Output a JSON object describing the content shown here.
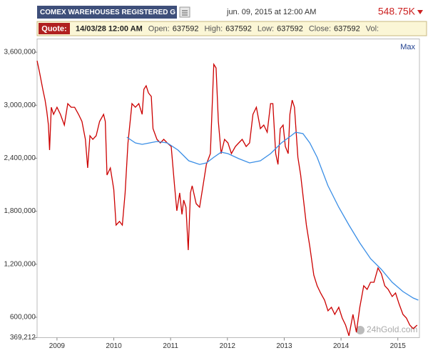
{
  "header": {
    "title": "COMEX WAREHOUSES REGISTERED G",
    "date": "jun. 09, 2015 at 12:00 AM",
    "last": "548.75K"
  },
  "quote": {
    "label": "Quote:",
    "time": "14/03/28 12:00 AM",
    "fields": [
      {
        "label": "Open:",
        "value": 637592
      },
      {
        "label": "High:",
        "value": 637592
      },
      {
        "label": "Low:",
        "value": 637592
      },
      {
        "label": "Close:",
        "value": 637592
      },
      {
        "label": "Vol:",
        "value": null
      }
    ]
  },
  "range": "Max",
  "watermark": "24hGold.com",
  "chart_data": {
    "type": "line",
    "xlim": [
      2008.65,
      2015.38
    ],
    "xticks": [
      2009,
      2010,
      2011,
      2012,
      2013,
      2014,
      2015
    ],
    "ylim": [
      369212,
      3750000
    ],
    "yticks": [
      {
        "value": 369212,
        "label": "369,212"
      },
      {
        "value": 600000,
        "label": "600,000"
      },
      {
        "value": 1200000,
        "label": "1,200,000"
      },
      {
        "value": 1800000,
        "label": "1,800,000"
      },
      {
        "value": 2400000,
        "label": "2,400,000"
      },
      {
        "value": 3000000,
        "label": "3,000,000"
      },
      {
        "value": 3600000,
        "label": "3,600,000"
      }
    ],
    "grid": false,
    "series": [
      {
        "color": "#cc0000",
        "x": [
          2008.65,
          2008.69,
          2008.75,
          2008.79,
          2008.82,
          2008.85,
          2008.87,
          2008.9,
          2008.94,
          2009.0,
          2009.06,
          2009.13,
          2009.19,
          2009.25,
          2009.31,
          2009.38,
          2009.44,
          2009.5,
          2009.54,
          2009.58,
          2009.63,
          2009.69,
          2009.75,
          2009.82,
          2009.85,
          2009.88,
          2009.94,
          2010.0,
          2010.04,
          2010.1,
          2010.15,
          2010.2,
          2010.25,
          2010.32,
          2010.38,
          2010.44,
          2010.5,
          2010.53,
          2010.57,
          2010.61,
          2010.66,
          2010.69,
          2010.76,
          2010.82,
          2010.88,
          2010.94,
          2011.01,
          2011.07,
          2011.11,
          2011.16,
          2011.2,
          2011.23,
          2011.27,
          2011.31,
          2011.35,
          2011.38,
          2011.45,
          2011.51,
          2011.57,
          2011.63,
          2011.7,
          2011.76,
          2011.8,
          2011.84,
          2011.89,
          2011.95,
          2012.01,
          2012.07,
          2012.14,
          2012.2,
          2012.26,
          2012.33,
          2012.39,
          2012.45,
          2012.51,
          2012.58,
          2012.64,
          2012.7,
          2012.76,
          2012.8,
          2012.85,
          2012.89,
          2012.93,
          2012.98,
          2013.02,
          2013.07,
          2013.1,
          2013.14,
          2013.18,
          2013.24,
          2013.29,
          2013.34,
          2013.39,
          2013.45,
          2013.52,
          2013.58,
          2013.64,
          2013.71,
          2013.77,
          2013.83,
          2013.89,
          2013.96,
          2014.02,
          2014.08,
          2014.14,
          2014.21,
          2014.27,
          2014.33,
          2014.4,
          2014.46,
          2014.52,
          2014.58,
          2014.65,
          2014.71,
          2014.77,
          2014.83,
          2014.9,
          2014.96,
          2015.02,
          2015.09,
          2015.15,
          2015.21,
          2015.27,
          2015.34
        ],
        "values": [
          3503000,
          3382000,
          3180000,
          3058000,
          2937000,
          2775000,
          2492000,
          2977000,
          2897000,
          2977000,
          2897000,
          2775000,
          3018000,
          2977000,
          2977000,
          2897000,
          2816000,
          2614000,
          2290000,
          2654000,
          2614000,
          2654000,
          2816000,
          2897000,
          2816000,
          2209000,
          2290000,
          2047000,
          1643000,
          1684000,
          1643000,
          2007000,
          2573000,
          3018000,
          2977000,
          3018000,
          2897000,
          3180000,
          3220000,
          3139000,
          3099000,
          2735000,
          2614000,
          2573000,
          2614000,
          2573000,
          2533000,
          2088000,
          1805000,
          2007000,
          1764000,
          1926000,
          1845000,
          1360000,
          2007000,
          2088000,
          1886000,
          1845000,
          2088000,
          2330000,
          2452000,
          3463000,
          3422000,
          2816000,
          2452000,
          2614000,
          2573000,
          2452000,
          2533000,
          2573000,
          2614000,
          2533000,
          2573000,
          2897000,
          2977000,
          2735000,
          2775000,
          2694000,
          3018000,
          3018000,
          2452000,
          2330000,
          2735000,
          2775000,
          2533000,
          2452000,
          2897000,
          3058000,
          2977000,
          2411000,
          2209000,
          1926000,
          1643000,
          1401000,
          1077000,
          956000,
          875000,
          794000,
          673000,
          713000,
          632000,
          713000,
          592000,
          511000,
          390000,
          632000,
          430000,
          713000,
          956000,
          915000,
          996000,
          996000,
          1158000,
          1093000,
          956000,
          915000,
          835000,
          875000,
          754000,
          632000,
          592000,
          511000,
          471000,
          511000
        ]
      },
      {
        "color": "#3a8ee6",
        "x": [
          2010.23,
          2010.38,
          2010.5,
          2010.63,
          2010.76,
          2010.94,
          2011.13,
          2011.32,
          2011.51,
          2011.63,
          2011.76,
          2011.89,
          2012.01,
          2012.2,
          2012.39,
          2012.58,
          2012.76,
          2012.95,
          2013.12,
          2013.2,
          2013.33,
          2013.45,
          2013.58,
          2013.77,
          2013.96,
          2014.14,
          2014.33,
          2014.52,
          2014.71,
          2014.9,
          2015.09,
          2015.27,
          2015.36
        ],
        "values": [
          2638000,
          2573000,
          2557000,
          2573000,
          2589000,
          2573000,
          2492000,
          2371000,
          2330000,
          2347000,
          2411000,
          2468000,
          2452000,
          2395000,
          2347000,
          2371000,
          2452000,
          2573000,
          2654000,
          2694000,
          2678000,
          2573000,
          2411000,
          2088000,
          1845000,
          1643000,
          1441000,
          1263000,
          1142000,
          996000,
          891000,
          818000,
          794000
        ]
      }
    ]
  }
}
